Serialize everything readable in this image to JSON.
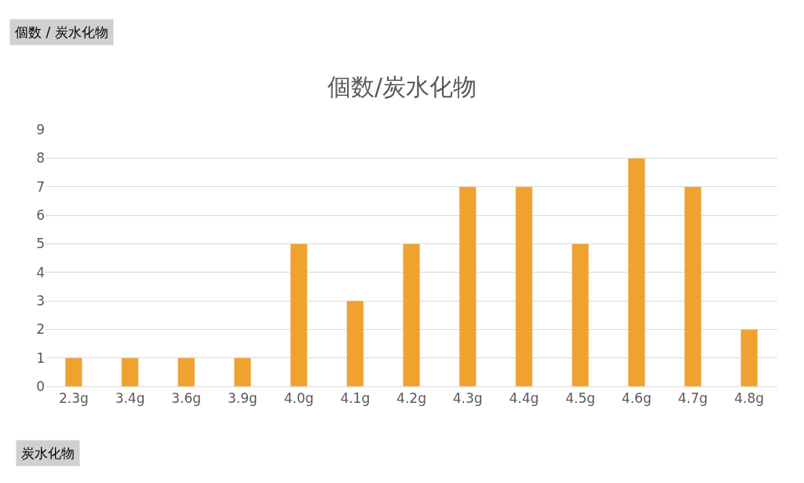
{
  "chart_data": {
    "type": "bar",
    "title": "個数/炭水化物",
    "categories": [
      "2.3g",
      "3.4g",
      "3.6g",
      "3.9g",
      "4.0g",
      "4.1g",
      "4.2g",
      "4.3g",
      "4.4g",
      "4.5g",
      "4.6g",
      "4.7g",
      "4.8g"
    ],
    "values": [
      1,
      1,
      1,
      1,
      5,
      3,
      5,
      7,
      7,
      5,
      8,
      7,
      2
    ],
    "color": "#f0a22e",
    "ylim": [
      0,
      9
    ],
    "yticks": [
      0,
      1,
      2,
      3,
      4,
      5,
      6,
      7,
      8,
      9
    ],
    "grid": "y",
    "legend": false,
    "annotations": [
      "個数 / 炭水化物",
      "炭水化物"
    ]
  }
}
